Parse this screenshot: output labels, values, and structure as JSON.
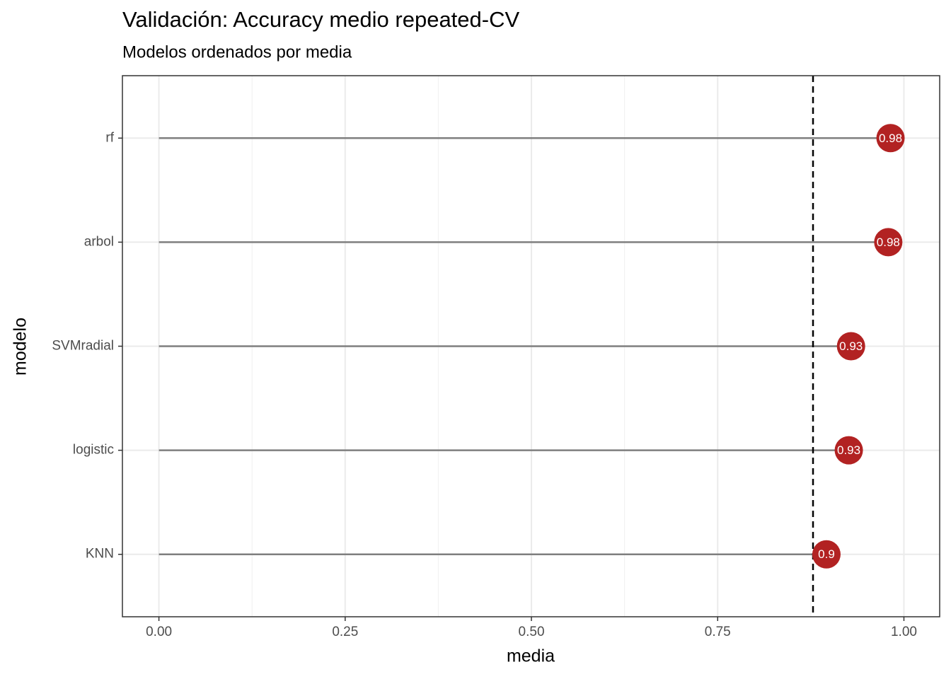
{
  "chart_data": {
    "type": "lollipop",
    "title": "Validación: Accuracy medio repeated-CV",
    "subtitle": "Modelos ordenados por media",
    "x_label": "media",
    "y_label": "modelo",
    "categories": [
      "rf",
      "arbol",
      "SVMradial",
      "logistic",
      "KNN"
    ],
    "values": [
      0.982,
      0.979,
      0.929,
      0.926,
      0.896
    ],
    "value_labels": [
      "0.98",
      "0.98",
      "0.93",
      "0.93",
      "0.9"
    ],
    "color": "#b22222",
    "stem_color": "#7f7f7f",
    "reference_line": 0.878,
    "xlim": [
      -0.049,
      1.048
    ],
    "xticks": [
      {
        "value": 0,
        "label": "0.00"
      },
      {
        "value": 0.25,
        "label": "0.25"
      },
      {
        "value": 0.5,
        "label": "0.50"
      },
      {
        "value": 0.75,
        "label": "0.75"
      },
      {
        "value": 1,
        "label": "1.00"
      }
    ],
    "x_minor_grid": [
      0.125,
      0.375,
      0.625,
      0.875
    ],
    "grid": true
  }
}
